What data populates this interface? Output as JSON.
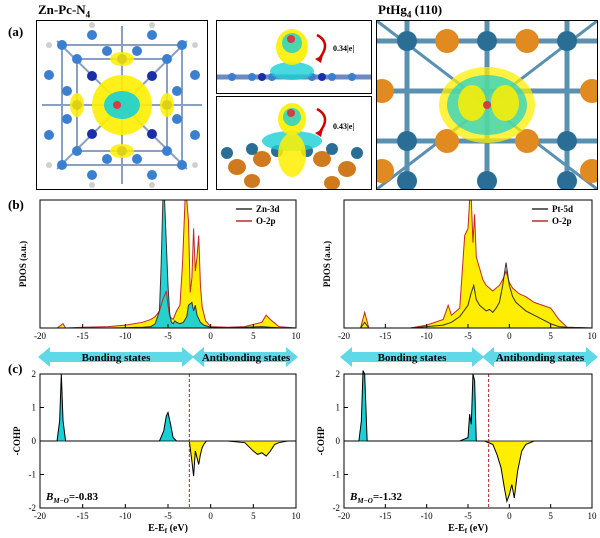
{
  "labels": {
    "panel_a": "(a)",
    "panel_b": "(b)",
    "panel_c": "(c)",
    "left_title_main": "Zn-Pc-N",
    "left_title_sub": "4",
    "right_title_main": "PtHg",
    "right_title_sub": "4",
    "right_title_tail": " (110)",
    "charge_zn": "0.34|e|",
    "charge_mid": "0.43|e|"
  },
  "states_bar": {
    "bonding": "Bonding states",
    "antibonding": "Antibonding states"
  },
  "colors": {
    "cyan": "#19d0d6",
    "yellow": "#ffee00",
    "red_line": "#c0282c",
    "dark_line": "#333333",
    "arrow_cyan": "#5fd8e8"
  },
  "chart_data": [
    {
      "type": "area",
      "id": "pdos-left",
      "ylabel": "PDOS (a.u.)",
      "xlim": [
        -20,
        10
      ],
      "xticks": [
        -20,
        -15,
        -10,
        -5,
        0,
        5,
        10
      ],
      "legend": [
        "Zn-3d",
        "O-2p"
      ],
      "series": [
        {
          "name": "Zn-3d",
          "x": [
            -20,
            -18,
            -15,
            -12,
            -10,
            -8,
            -7,
            -6.5,
            -6,
            -5.8,
            -5.6,
            -5.4,
            -5.2,
            -5,
            -4.8,
            -4.6,
            -4.4,
            -4.2,
            -4,
            -3.6,
            -3.2,
            -3,
            -2.8,
            -2.6,
            -2.2,
            -2,
            -1.8,
            -1.6,
            -1.2,
            -0.8,
            0,
            2,
            4,
            6,
            7,
            8,
            10
          ],
          "y": [
            0,
            0,
            0,
            0,
            0.02,
            0.05,
            0.1,
            0.3,
            1.2,
            4.5,
            9,
            9,
            6,
            3,
            1,
            0.4,
            0.3,
            0.5,
            0.4,
            0.3,
            0.4,
            0.6,
            0.8,
            1.6,
            1.8,
            1.2,
            1.6,
            0.9,
            0.4,
            0.2,
            0.05,
            0.02,
            0.05,
            0.1,
            0.05,
            0.02,
            0
          ]
        },
        {
          "name": "O-2p",
          "x": [
            -20,
            -18,
            -17.3,
            -17,
            -15,
            -12,
            -10,
            -8,
            -7,
            -6.5,
            -6,
            -5.6,
            -5.2,
            -5,
            -4.8,
            -4.4,
            -4,
            -3.6,
            -3.3,
            -3,
            -2.8,
            -2.6,
            -2.4,
            -2.2,
            -2,
            -1.8,
            -1.6,
            -1.4,
            -1.2,
            -1,
            -0.6,
            0,
            2,
            4,
            6,
            6.5,
            7,
            8,
            10
          ],
          "y": [
            0,
            0,
            0.3,
            0,
            0.05,
            0.1,
            0.2,
            0.4,
            0.6,
            0.8,
            1.2,
            2,
            2.6,
            1.6,
            0.8,
            0.6,
            1.2,
            1.6,
            4.5,
            9,
            9,
            7.5,
            2.5,
            3.5,
            7,
            4,
            5,
            6.5,
            3,
            1.5,
            0.5,
            0.1,
            0.05,
            0.1,
            0.4,
            0.9,
            0.6,
            0.1,
            0
          ]
        }
      ]
    },
    {
      "type": "area",
      "id": "pdos-right",
      "ylabel": "PDOS (a.u.)",
      "xlim": [
        -20,
        10
      ],
      "xticks": [
        -20,
        -15,
        -10,
        -5,
        0,
        5,
        10
      ],
      "legend": [
        "Pt-5d",
        "O-2p"
      ],
      "series": [
        {
          "name": "Pt-5d",
          "x": [
            -20,
            -18,
            -17.5,
            -17,
            -15,
            -12,
            -10,
            -8,
            -7,
            -6,
            -5.5,
            -5,
            -4.6,
            -4.3,
            -4,
            -3.6,
            -3.2,
            -2.8,
            -2.4,
            -2,
            -1.6,
            -1.2,
            -0.8,
            -0.4,
            0,
            0.4,
            0.8,
            1.2,
            2,
            3,
            4,
            5,
            6,
            7,
            10
          ],
          "y": [
            0,
            0,
            0.4,
            0,
            0,
            0,
            0.1,
            0.2,
            0.4,
            0.8,
            1.2,
            1.6,
            2.5,
            3,
            2,
            1.6,
            1.4,
            1.2,
            1.3,
            1.1,
            1.4,
            1.8,
            3,
            4.6,
            3,
            2.2,
            1.8,
            1.6,
            1.2,
            0.9,
            0.6,
            0.3,
            0.1,
            0.05,
            0
          ]
        },
        {
          "name": "O-2p",
          "x": [
            -20,
            -18,
            -17.5,
            -17,
            -15,
            -12,
            -10,
            -8,
            -7.4,
            -7,
            -6,
            -5.4,
            -5,
            -4.8,
            -4.6,
            -4.4,
            -4.2,
            -4,
            -3.6,
            -3.2,
            -2.8,
            -2.4,
            -2,
            -1.6,
            -1.2,
            -0.8,
            -0.4,
            0,
            0.4,
            0.8,
            1.2,
            2,
            3,
            4,
            5,
            6,
            7,
            10
          ],
          "y": [
            0,
            0,
            1.1,
            0,
            0,
            0,
            0.2,
            0.6,
            1.6,
            0.9,
            1.4,
            6.5,
            7,
            9,
            9,
            6,
            8,
            5,
            4.2,
            3.4,
            3,
            2.8,
            2.6,
            2.8,
            3,
            3.4,
            4,
            3.2,
            2.8,
            2.6,
            2.4,
            2.2,
            1.8,
            1.6,
            1.4,
            0.6,
            0.05,
            0
          ]
        }
      ]
    },
    {
      "type": "area",
      "id": "cohp-left",
      "ylabel": "-COHP",
      "xlabel": "E-E",
      "xlabel_sub": "f",
      "xlabel_tail": " (eV)",
      "xlim": [
        -20,
        10
      ],
      "ylim": [
        -2,
        2
      ],
      "xticks": [
        -20,
        -15,
        -10,
        -5,
        0,
        5,
        10
      ],
      "yticks": [
        -2,
        -1,
        0,
        1,
        2
      ],
      "fermi_level": -2.5,
      "bond_label": "B",
      "bond_sub": "M−O",
      "bond_value": "=-0.83",
      "series": [
        {
          "name": "-COHP",
          "x": [
            -20,
            -18,
            -17.7,
            -17.5,
            -17.3,
            -17,
            -15,
            -10,
            -6,
            -5.5,
            -5.2,
            -5,
            -4.7,
            -4.4,
            -4,
            -3,
            -2.5,
            -2.2,
            -2,
            -1.8,
            -1.6,
            -1.4,
            -1.2,
            -1,
            -0.8,
            -0.5,
            0,
            2,
            4,
            5,
            5.5,
            6,
            6.5,
            7,
            7.5,
            8,
            9,
            10
          ],
          "y": [
            0,
            0,
            0.6,
            2,
            0.6,
            0,
            0,
            0,
            0,
            0.3,
            0.75,
            0.85,
            0.5,
            0.1,
            0,
            0,
            0,
            -0.6,
            -1.05,
            -0.3,
            -0.5,
            -0.7,
            -0.4,
            -0.2,
            -0.1,
            0,
            0,
            0,
            -0.05,
            -0.3,
            -0.4,
            -0.35,
            -0.45,
            -0.3,
            -0.1,
            -0.05,
            0,
            0
          ]
        }
      ]
    },
    {
      "type": "area",
      "id": "cohp-right",
      "ylabel": "-COHP",
      "xlabel": "E-E",
      "xlabel_sub": "f",
      "xlabel_tail": " (eV)",
      "xlim": [
        -20,
        10
      ],
      "ylim": [
        -2,
        2
      ],
      "xticks": [
        -20,
        -15,
        -10,
        -5,
        0,
        5,
        10
      ],
      "yticks": [
        -2,
        -1,
        0,
        1,
        2
      ],
      "fermi_level": -2.5,
      "bond_label": "B",
      "bond_sub": "M−O",
      "bond_value": "=-1.32",
      "series": [
        {
          "name": "-COHP",
          "x": [
            -20,
            -18.2,
            -17.9,
            -17.7,
            -17.5,
            -17.2,
            -15,
            -10,
            -6,
            -5,
            -4.8,
            -4.6,
            -4.4,
            -4.2,
            -4,
            -3.5,
            -3,
            -2,
            -1.5,
            -1,
            -0.6,
            -0.3,
            0,
            0.3,
            0.6,
            1,
            1.5,
            2,
            3,
            5,
            10
          ],
          "y": [
            0,
            0,
            0.6,
            2.1,
            2,
            0,
            0,
            0,
            0,
            0.1,
            0.8,
            0.5,
            2,
            1.8,
            0,
            0,
            0,
            -0.1,
            -0.4,
            -0.8,
            -1.4,
            -1.8,
            -1.6,
            -1.3,
            -1.7,
            -0.9,
            -0.3,
            -0.1,
            0,
            0,
            0
          ]
        }
      ]
    }
  ]
}
